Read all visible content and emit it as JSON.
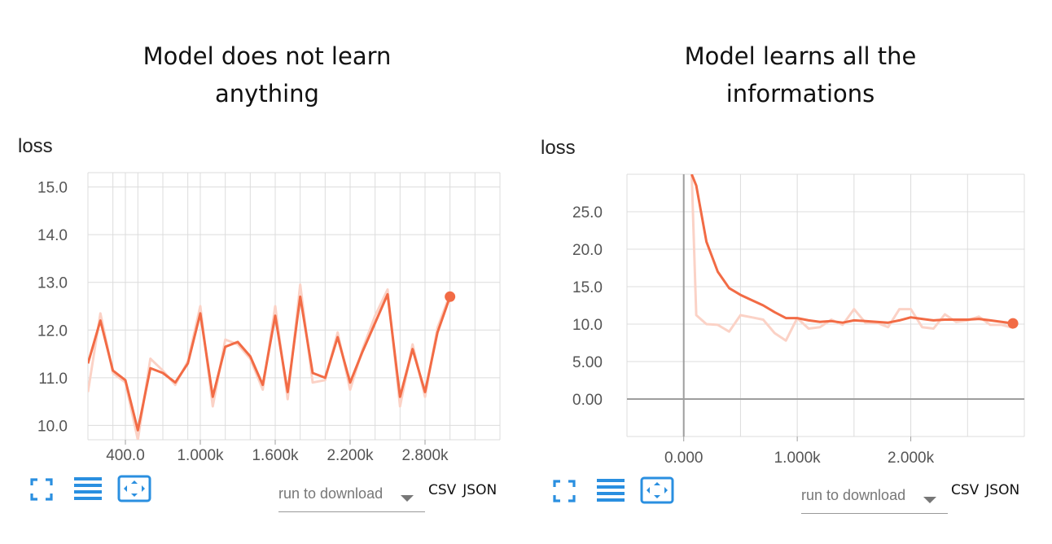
{
  "panels": [
    {
      "title": "Model does not learn anything",
      "title_lines": [
        "Model does not learn",
        "anything"
      ],
      "download": {
        "placeholder": "run to download",
        "csv": "CSV",
        "json": "JSON"
      }
    },
    {
      "title": "Model learns all the informations",
      "title_lines": [
        "Model learns all the",
        "informations"
      ],
      "download": {
        "placeholder": "run to download",
        "csv": "CSV",
        "json": "JSON"
      }
    }
  ],
  "colors": {
    "line": "#f26b45",
    "raw": "#fbd2c6",
    "grid": "#dcdcdc",
    "axis": "#9e9e9e",
    "icon": "#2a8fe0"
  },
  "icons": [
    "fullscreen-icon",
    "list-icon",
    "fit-domain-icon"
  ],
  "chart_data": [
    {
      "type": "line",
      "title": "loss",
      "xlim": [
        100,
        3400
      ],
      "ylim": [
        9.7,
        15.3
      ],
      "x_ticks": [
        400,
        1000,
        1600,
        2200,
        2800
      ],
      "x_tick_labels": [
        "400.0",
        "1.000k",
        "1.600k",
        "2.200k",
        "2.800k"
      ],
      "x_grid": [
        300,
        400,
        500,
        700,
        900,
        1000,
        1200,
        1400,
        1600,
        1800,
        2000,
        2200,
        2400,
        2600,
        2800,
        3000,
        3200
      ],
      "y_ticks": [
        10,
        11,
        12,
        13,
        14,
        15
      ],
      "y_tick_labels": [
        "10.0",
        "11.0",
        "12.0",
        "13.0",
        "14.0",
        "15.0"
      ],
      "grid": true,
      "smoothed": {
        "x": [
          100,
          200,
          300,
          400,
          500,
          600,
          700,
          800,
          900,
          1000,
          1100,
          1200,
          1300,
          1400,
          1500,
          1600,
          1700,
          1800,
          1900,
          2000,
          2100,
          2200,
          2300,
          2400,
          2500,
          2600,
          2700,
          2800,
          2900,
          3000
        ],
        "y": [
          11.3,
          12.2,
          11.15,
          10.95,
          9.9,
          11.2,
          11.1,
          10.9,
          11.3,
          12.35,
          10.6,
          11.65,
          11.75,
          11.45,
          10.85,
          12.3,
          10.7,
          12.7,
          11.1,
          11.0,
          11.85,
          10.9,
          11.55,
          12.15,
          12.75,
          10.6,
          11.6,
          10.7,
          11.95,
          12.7
        ]
      },
      "raw": {
        "x": [
          100,
          200,
          300,
          400,
          500,
          600,
          700,
          800,
          900,
          1000,
          1100,
          1200,
          1300,
          1400,
          1500,
          1600,
          1700,
          1800,
          1900,
          2000,
          2100,
          2200,
          2300,
          2400,
          2500,
          2600,
          2700,
          2800,
          2900,
          3000
        ],
        "y": [
          10.7,
          12.35,
          11.1,
          10.9,
          9.7,
          11.4,
          11.15,
          10.85,
          11.35,
          12.5,
          10.4,
          11.8,
          11.7,
          11.4,
          10.75,
          12.5,
          10.55,
          12.95,
          10.9,
          10.95,
          11.95,
          10.75,
          11.6,
          12.3,
          12.85,
          10.4,
          11.7,
          10.6,
          12.05,
          12.75
        ]
      }
    },
    {
      "type": "line",
      "title": "loss",
      "xlim": [
        -500,
        3000
      ],
      "ylim": [
        -5,
        30
      ],
      "x_ticks": [
        0,
        1000,
        2000
      ],
      "x_tick_labels": [
        "0.000",
        "1.000k",
        "2.000k"
      ],
      "x_grid": [
        -500,
        500,
        1000,
        1500,
        2000,
        2500
      ],
      "y_ticks": [
        0,
        5,
        10,
        15,
        20,
        25
      ],
      "y_tick_labels": [
        "0.00",
        "5.00",
        "10.0",
        "15.0",
        "20.0",
        "25.0"
      ],
      "grid": true,
      "smoothed": {
        "x": [
          70,
          110,
          200,
          300,
          400,
          500,
          600,
          700,
          800,
          900,
          1000,
          1100,
          1200,
          1300,
          1400,
          1500,
          1600,
          1700,
          1800,
          1900,
          2000,
          2100,
          2200,
          2300,
          2400,
          2500,
          2600,
          2700,
          2800,
          2900
        ],
        "y": [
          30,
          28.5,
          21,
          17,
          14.8,
          13.9,
          13.2,
          12.5,
          11.6,
          10.8,
          10.8,
          10.5,
          10.3,
          10.4,
          10.2,
          10.5,
          10.4,
          10.3,
          10.2,
          10.5,
          10.9,
          10.7,
          10.5,
          10.6,
          10.6,
          10.6,
          10.7,
          10.5,
          10.3,
          10.1
        ]
      },
      "raw": {
        "x": [
          70,
          110,
          200,
          300,
          400,
          500,
          600,
          700,
          800,
          900,
          1000,
          1100,
          1200,
          1300,
          1400,
          1500,
          1600,
          1700,
          1800,
          1900,
          2000,
          2100,
          2200,
          2300,
          2400,
          2500,
          2600,
          2700,
          2800,
          2900
        ],
        "y": [
          30,
          11.2,
          10,
          9.9,
          9,
          11.2,
          10.9,
          10.6,
          8.8,
          7.8,
          10.8,
          9.4,
          9.6,
          10.6,
          9.9,
          12,
          10.2,
          10.2,
          9.6,
          12,
          12,
          9.6,
          9.4,
          11.3,
          10.3,
          10.5,
          11,
          9.9,
          9.9,
          9.5
        ]
      }
    }
  ]
}
